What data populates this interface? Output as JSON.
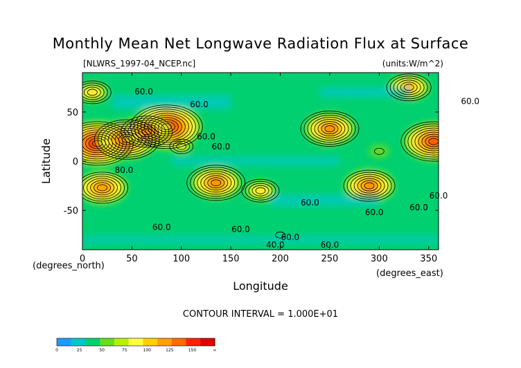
{
  "chart_data": {
    "type": "heatmap",
    "title": "Monthly Mean Net Longwave Radiation Flux at Surface",
    "source_file": "[NLWRS_1997-04_NCEP.nc]",
    "units": "(units:W/m^2)",
    "xlabel": "Longitude",
    "ylabel": "Latitude",
    "x_unit_label": "(degrees_east)",
    "y_unit_label": "(degrees_north)",
    "xlim": [
      0,
      360
    ],
    "ylim": [
      -90,
      90
    ],
    "x_ticks": [
      "0",
      "50",
      "100",
      "150",
      "200",
      "250",
      "300",
      "350"
    ],
    "y_ticks": [
      "50",
      "0",
      "-50"
    ],
    "contour_interval_text": "CONTOUR INTERVAL = 1.000E+01",
    "contour_labels": [
      "60.0",
      "60.0",
      "80.0",
      "60.0",
      "60.0",
      "60.0",
      "60.0",
      "60.0",
      "60.0",
      "60.0",
      "60.0",
      "40.0",
      "60.0",
      "60.0",
      "60.0"
    ],
    "colorbar": {
      "tick_labels": [
        "0",
        "25",
        "50",
        "75",
        "100",
        "125",
        "150",
        "∞"
      ],
      "colors": [
        "#1e9bff",
        "#00c8c8",
        "#00d070",
        "#66dd22",
        "#b8f000",
        "#ffff44",
        "#ffd000",
        "#ffa000",
        "#ff6a00",
        "#ff2000",
        "#e00000"
      ]
    },
    "features": [
      {
        "lon": 15,
        "lat": 18,
        "value": 150
      },
      {
        "lon": 45,
        "lat": 22,
        "value": 140
      },
      {
        "lon": 85,
        "lat": 35,
        "value": 150
      },
      {
        "lon": 65,
        "lat": 30,
        "value": 120
      },
      {
        "lon": 355,
        "lat": 20,
        "value": 140
      },
      {
        "lon": 250,
        "lat": 33,
        "value": 125
      },
      {
        "lon": 20,
        "lat": -27,
        "value": 115
      },
      {
        "lon": 135,
        "lat": -22,
        "value": 125
      },
      {
        "lon": 290,
        "lat": -25,
        "value": 120
      },
      {
        "lon": 180,
        "lat": -30,
        "value": 95
      },
      {
        "lon": 330,
        "lat": 75,
        "value": 110
      },
      {
        "lon": 10,
        "lat": 70,
        "value": 95
      },
      {
        "lon": 300,
        "lat": 10,
        "value": 45
      },
      {
        "lon": 200,
        "lat": -75,
        "value": 40
      },
      {
        "lon": 100,
        "lat": 15,
        "value": 80
      }
    ]
  }
}
